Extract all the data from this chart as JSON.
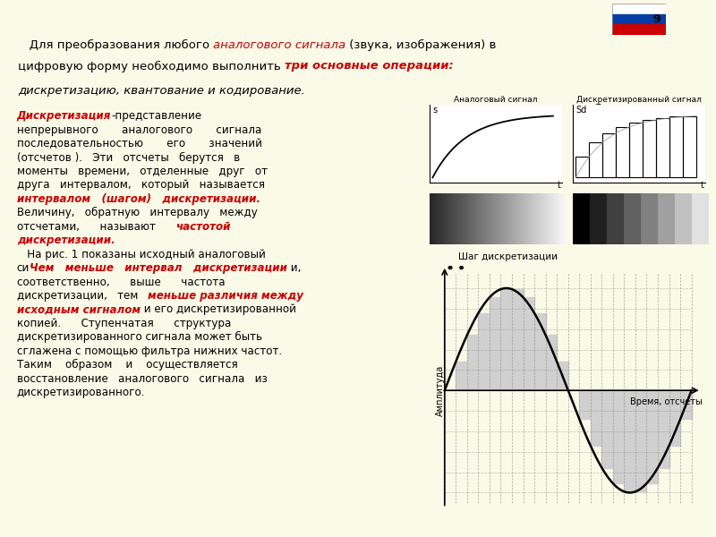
{
  "bg_color": "#FAFAE8",
  "header_bg": "#FAFAE8",
  "left_panel_bg": "#E8F5E9",
  "slide_number": "9",
  "top_chart_title": "Дискретизация",
  "analog_label": "Аналоговый сигнал",
  "discrete_label": "Дискретизированный сигнал",
  "bottom_chart_xlabel": "Время, отсчеты",
  "bottom_chart_ylabel": "Амплитуда",
  "bottom_chart_step_label": "Шаг дискретизации"
}
